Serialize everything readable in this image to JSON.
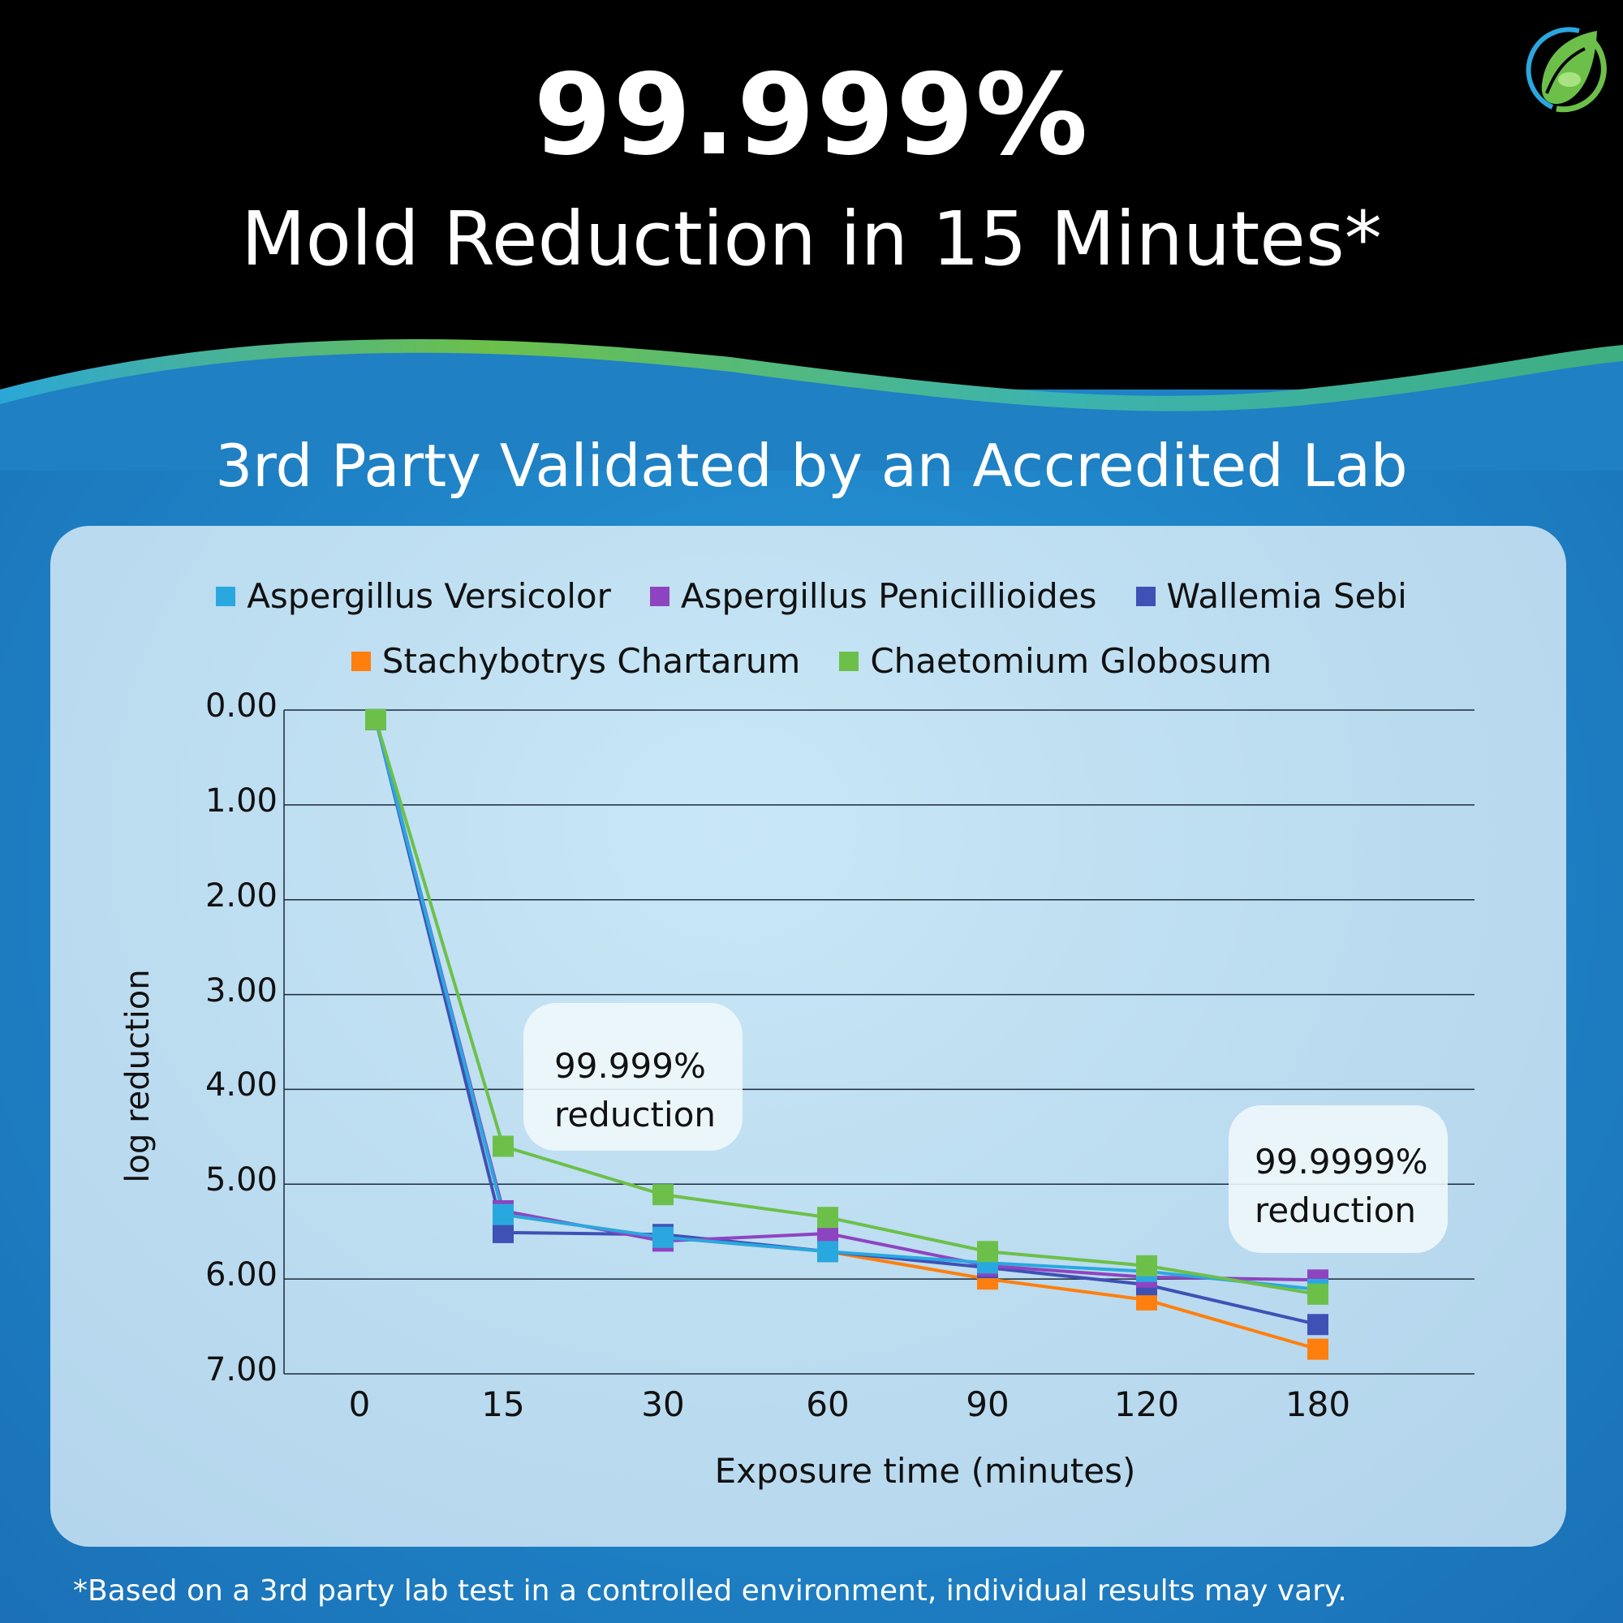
{
  "header": {
    "headline": "99.999%",
    "subheadline": "Mold Reduction in 15 Minutes*",
    "logo": "leaf-circle-logo"
  },
  "subtitle": "3rd Party Validated by an Accredited Lab",
  "footnote": "*Based on a 3rd party lab test in a controlled environment, individual results may vary.",
  "colors": {
    "background_top": "#000000",
    "background_blue": "#1d78bd",
    "wave_green": "#6cc04a",
    "panel": "#bcdcf0"
  },
  "callouts": [
    {
      "line1": "99.999%",
      "line2": "reduction"
    },
    {
      "line1": "99.9999%",
      "line2": "reduction"
    }
  ],
  "chart_data": {
    "type": "line",
    "title": "",
    "xlabel": "Exposure time (minutes)",
    "ylabel": "log reduction",
    "categories": [
      "0",
      "15",
      "30",
      "60",
      "90",
      "120",
      "180"
    ],
    "y_tick_labels": [
      "0.00",
      "1.00",
      "2.00",
      "3.00",
      "4.00",
      "5.00",
      "6.00",
      "7.00"
    ],
    "ylim": [
      0,
      7
    ],
    "y_inverted": true,
    "grid": true,
    "legend_position": "top",
    "series": [
      {
        "name": "Aspergillus Versicolor",
        "color": "#29a8e0",
        "values": [
          0.1,
          5.32,
          5.56,
          5.71,
          5.83,
          5.92,
          6.11
        ]
      },
      {
        "name": "Aspergillus Penicillioides",
        "color": "#8e44c0",
        "values": [
          0.1,
          5.28,
          5.6,
          5.52,
          5.86,
          5.98,
          6.01
        ]
      },
      {
        "name": "Wallemia Sebi",
        "color": "#3f51b5",
        "values": [
          0.1,
          5.51,
          5.53,
          5.71,
          5.88,
          6.06,
          6.48
        ]
      },
      {
        "name": "Stachybotrys Chartarum",
        "color": "#ff7f0e",
        "values": [
          0.1,
          5.32,
          5.56,
          5.71,
          6.0,
          6.22,
          6.74
        ]
      },
      {
        "name": "Chaetomium Globosum",
        "color": "#6cc04a",
        "values": [
          0.1,
          4.6,
          5.11,
          5.35,
          5.71,
          5.86,
          6.16
        ]
      }
    ]
  }
}
